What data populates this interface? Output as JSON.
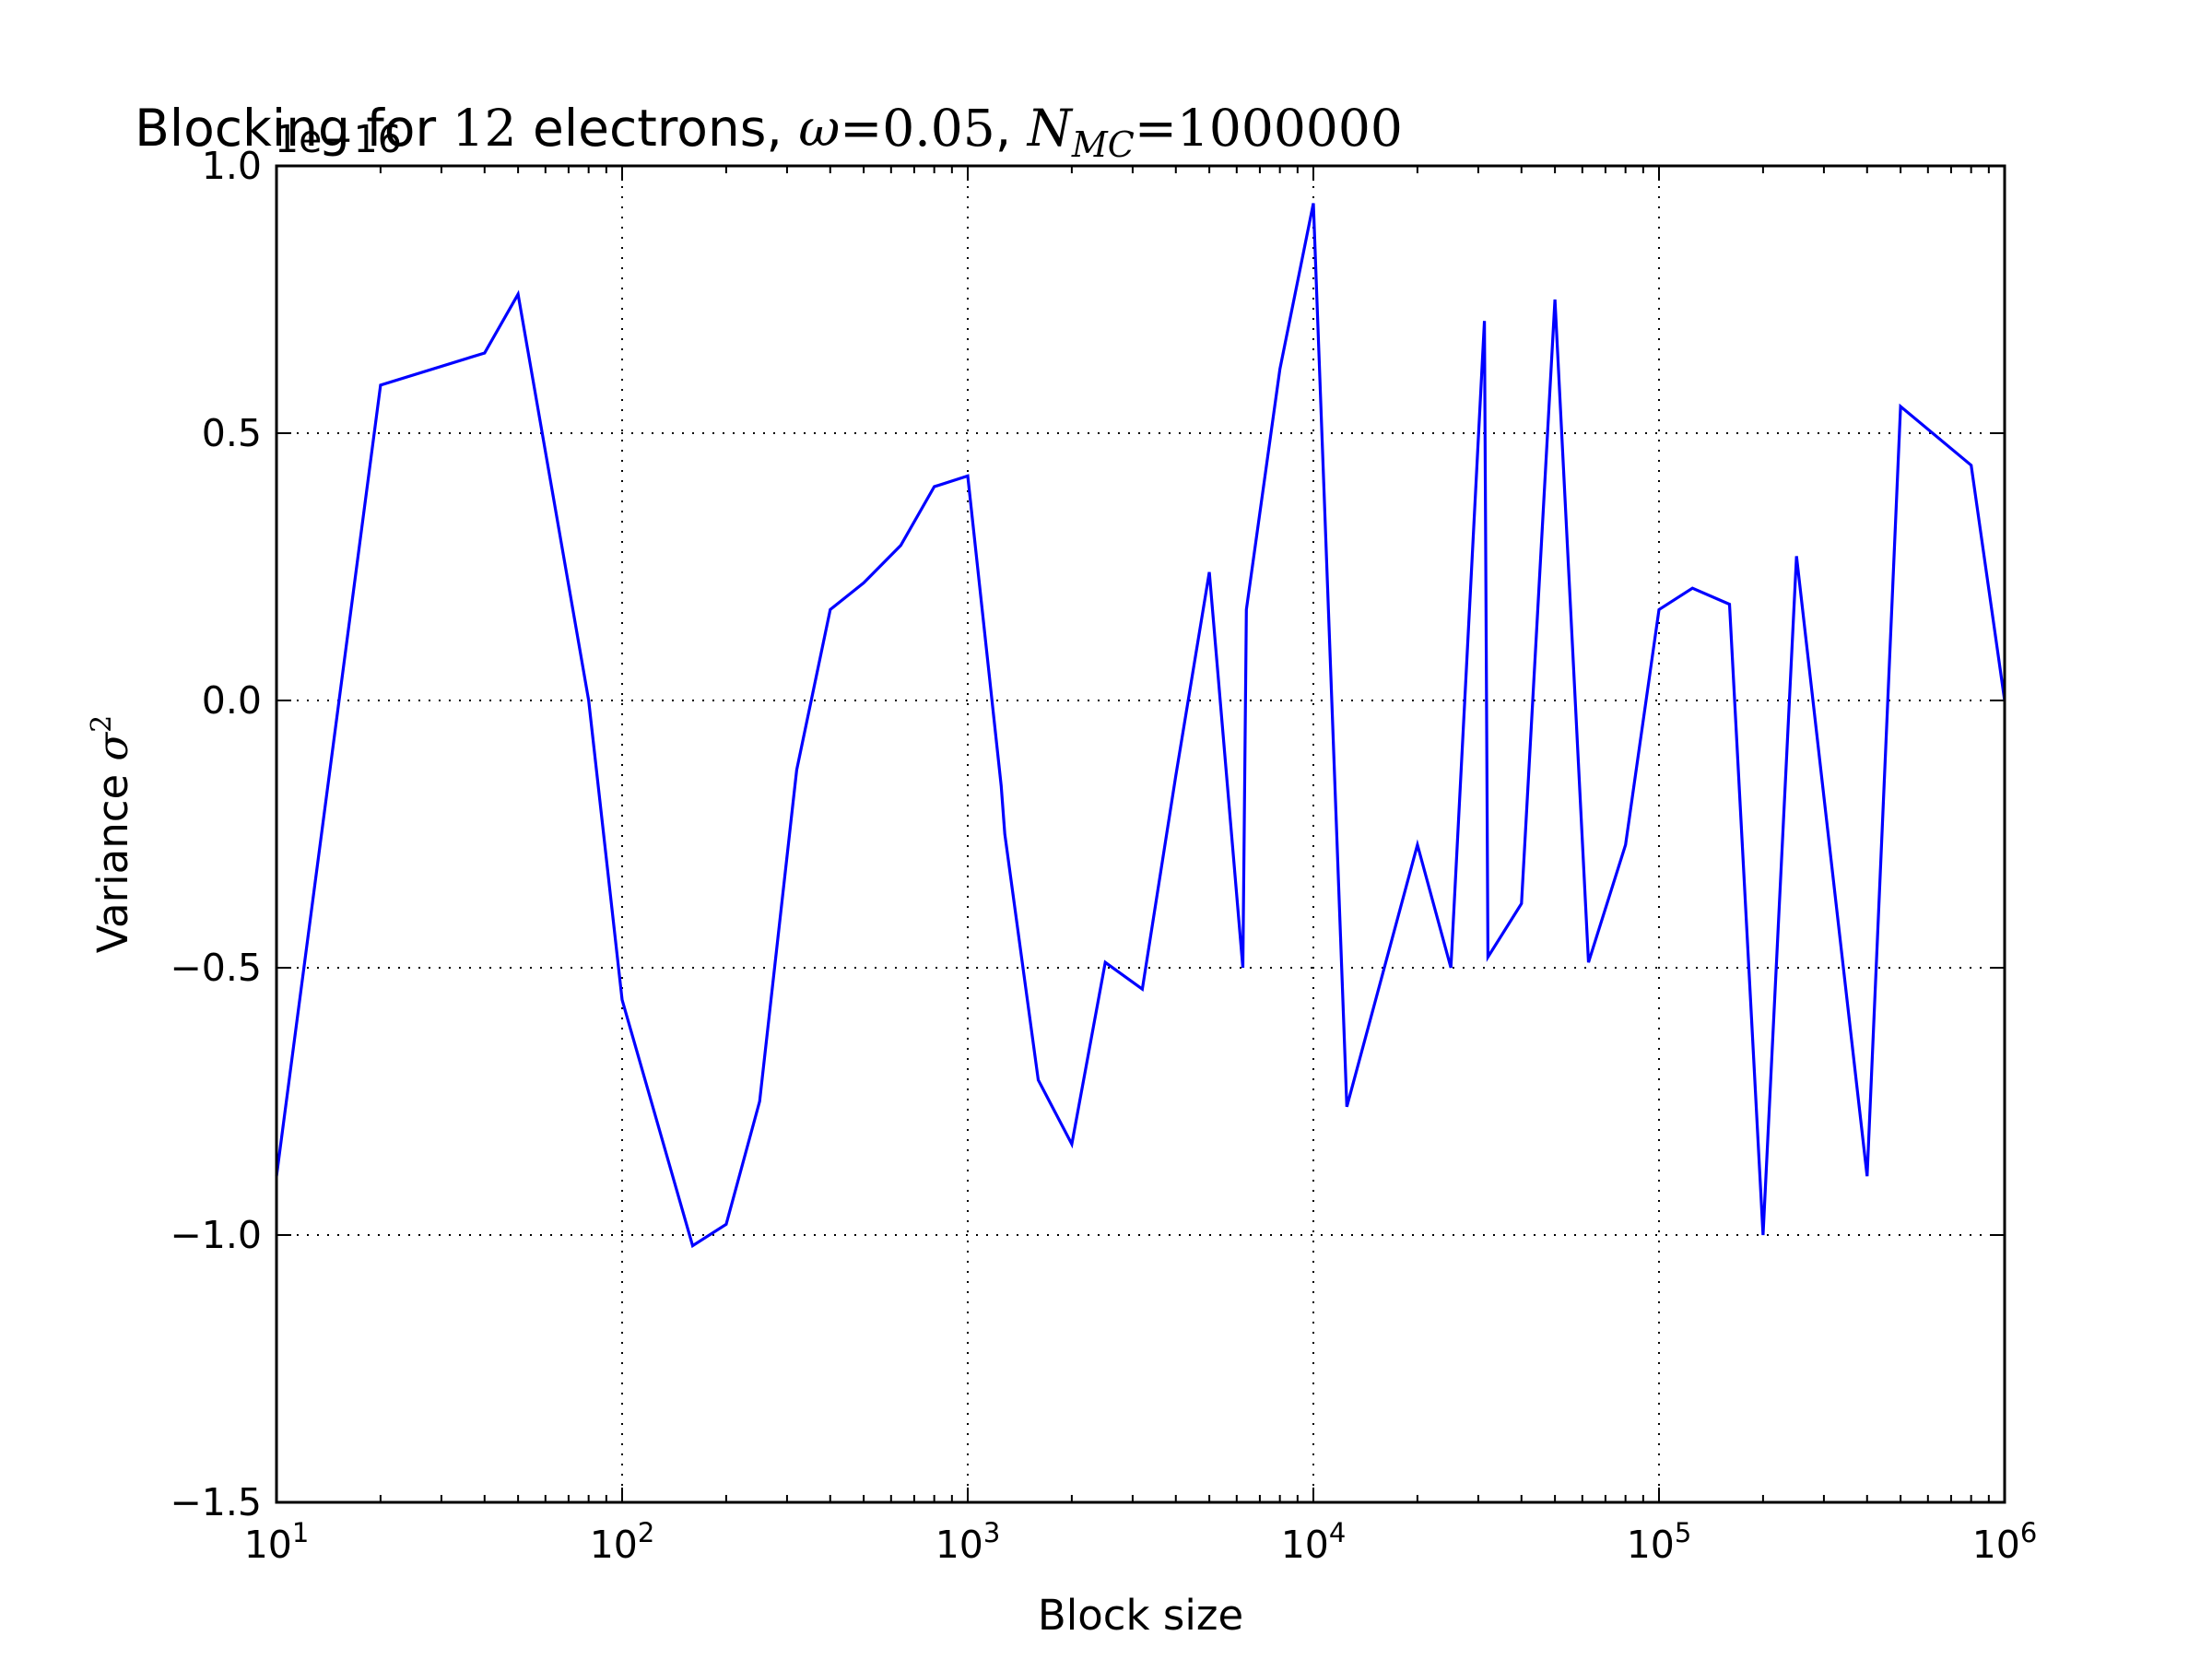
{
  "chart_data": {
    "type": "line",
    "title": {
      "prefix": "Blocking for ",
      "n": "12",
      "mid": " electrons, ",
      "omega_sym": "ω",
      "omega_eq": "=0.05",
      "sep": ", ",
      "nmc_sym": "N",
      "nmc_sub": "MC",
      "nmc_eq": "=1000000"
    },
    "xlabel": "Block size",
    "ylabel": {
      "text": "Variance ",
      "sym": "σ",
      "sup": "2"
    },
    "offset_label": "1e−16",
    "xscale": "log",
    "xlim": [
      10,
      1000000
    ],
    "ylim": [
      -1.5,
      1.0
    ],
    "grid": true,
    "line_color": "#0000ff",
    "x_ticks": [
      {
        "base": "10",
        "exp": "1"
      },
      {
        "base": "10",
        "exp": "2"
      },
      {
        "base": "10",
        "exp": "3"
      },
      {
        "base": "10",
        "exp": "4"
      },
      {
        "base": "10",
        "exp": "5"
      },
      {
        "base": "10",
        "exp": "6"
      }
    ],
    "y_ticks": [
      "1.0",
      "0.5",
      "0.0",
      "−0.5",
      "−1.0",
      "−1.5"
    ],
    "series": [
      {
        "x": [
          10,
          20,
          40,
          50,
          80,
          100,
          160,
          200,
          250,
          320,
          400,
          500,
          640,
          800,
          1000,
          1250,
          1280,
          1600,
          2000,
          2500,
          3200,
          4000,
          5000,
          6250,
          6400,
          8000,
          10000,
          12500,
          20000,
          25000,
          31250,
          32000,
          40000,
          50000,
          62500,
          80000,
          100000,
          125000,
          160000,
          200000,
          250000,
          400000,
          500000,
          800000,
          1000000
        ],
        "y": [
          -0.89,
          0.59,
          0.65,
          0.76,
          0.0,
          -0.56,
          -1.02,
          -0.98,
          -0.75,
          -0.13,
          0.17,
          0.22,
          0.29,
          0.4,
          0.42,
          -0.16,
          -0.25,
          -0.71,
          -0.83,
          -0.49,
          -0.54,
          -0.14,
          0.24,
          -0.5,
          0.17,
          0.62,
          0.93,
          -0.76,
          -0.27,
          -0.5,
          0.71,
          -0.48,
          -0.38,
          0.75,
          -0.49,
          -0.27,
          0.17,
          0.21,
          0.18,
          -1.0,
          0.27,
          -0.89,
          0.55,
          0.44,
          0.0
        ]
      }
    ]
  }
}
